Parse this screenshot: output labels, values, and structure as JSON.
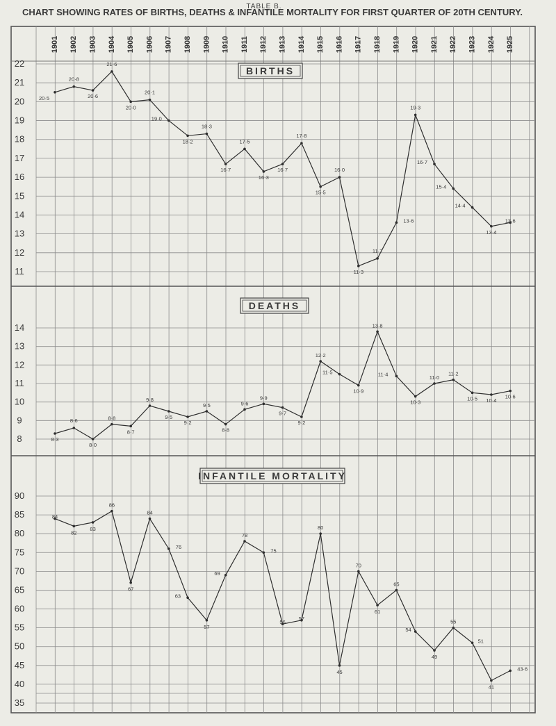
{
  "page": {
    "table_label": "TABLE B.",
    "title": "CHART SHOWING RATES OF BIRTHS, DEATHS & INFANTILE MORTALITY FOR FIRST QUARTER OF 20TH CENTURY."
  },
  "chart_data": {
    "type": "line",
    "years": [
      "1901",
      "1902",
      "1903",
      "1904",
      "1905",
      "1906",
      "1907",
      "1908",
      "1909",
      "1910",
      "1911",
      "1912",
      "1913",
      "1914",
      "1915",
      "1916",
      "1917",
      "1918",
      "1919",
      "1920",
      "1921",
      "1922",
      "1923",
      "1924",
      "1925"
    ],
    "grid": true,
    "panels": [
      {
        "title": "BIRTHS",
        "ylim": [
          10,
          22
        ],
        "yticks": [
          11,
          12,
          13,
          14,
          15,
          16,
          17,
          18,
          19,
          20,
          21,
          22
        ],
        "values": [
          20.5,
          20.8,
          20.6,
          21.6,
          20.0,
          20.1,
          19.0,
          18.2,
          18.3,
          16.7,
          17.5,
          16.3,
          16.7,
          17.8,
          15.5,
          16.0,
          11.3,
          11.7,
          13.6,
          19.3,
          16.7,
          15.4,
          14.4,
          13.4,
          13.6
        ],
        "labels": [
          "20·5",
          "20·8",
          "20·6",
          "21·6",
          "20·0",
          "20·1",
          "19·0",
          "18·2",
          "18·3",
          "16·7",
          "17·5",
          "16·3",
          "16·7",
          "17·8",
          "15·5",
          "16·0",
          "11·3",
          "11·7",
          "13·6",
          "19·3",
          "16·7",
          "15·4",
          "14·4",
          "13·4",
          "13·6"
        ]
      },
      {
        "title": "DEATHS",
        "ylim": [
          7,
          15
        ],
        "yticks": [
          8,
          9,
          10,
          11,
          12,
          13,
          14
        ],
        "values": [
          8.3,
          8.6,
          8.0,
          8.8,
          8.7,
          9.8,
          9.5,
          9.2,
          9.5,
          8.8,
          9.6,
          9.9,
          9.7,
          9.2,
          12.2,
          11.5,
          10.9,
          13.8,
          11.4,
          10.3,
          11.0,
          11.2,
          10.5,
          10.4,
          10.6
        ],
        "labels": [
          "8·3",
          "8·6",
          "8·0",
          "8·8",
          "8·7",
          "9·8",
          "9·5",
          "9·2",
          "9·5",
          "8·8",
          "9·6",
          "9·9",
          "9·7",
          "9·2",
          "12·2",
          "11·5",
          "10·9",
          "13·8",
          "11·4",
          "10·3",
          "11·0",
          "11·2",
          "10·5",
          "10·4",
          "10·6"
        ]
      },
      {
        "title": "INFANTILE MORTALITY",
        "ylim": [
          35,
          95
        ],
        "yticks": [
          35,
          40,
          45,
          50,
          55,
          60,
          65,
          70,
          75,
          80,
          85,
          90
        ],
        "values": [
          84,
          82,
          83,
          86,
          67,
          84,
          76,
          63,
          57,
          69,
          78,
          75,
          56,
          57,
          80,
          45,
          70,
          61,
          65,
          54,
          49,
          55,
          51,
          41,
          43.6
        ],
        "labels": [
          "84",
          "82",
          "83",
          "86",
          "67",
          "84",
          "76",
          "63",
          "57",
          "69",
          "78",
          "75",
          "56",
          "57",
          "80",
          "45",
          "70",
          "61",
          "65",
          "54",
          "49",
          "55",
          "51",
          "41",
          "43·6"
        ]
      }
    ]
  }
}
